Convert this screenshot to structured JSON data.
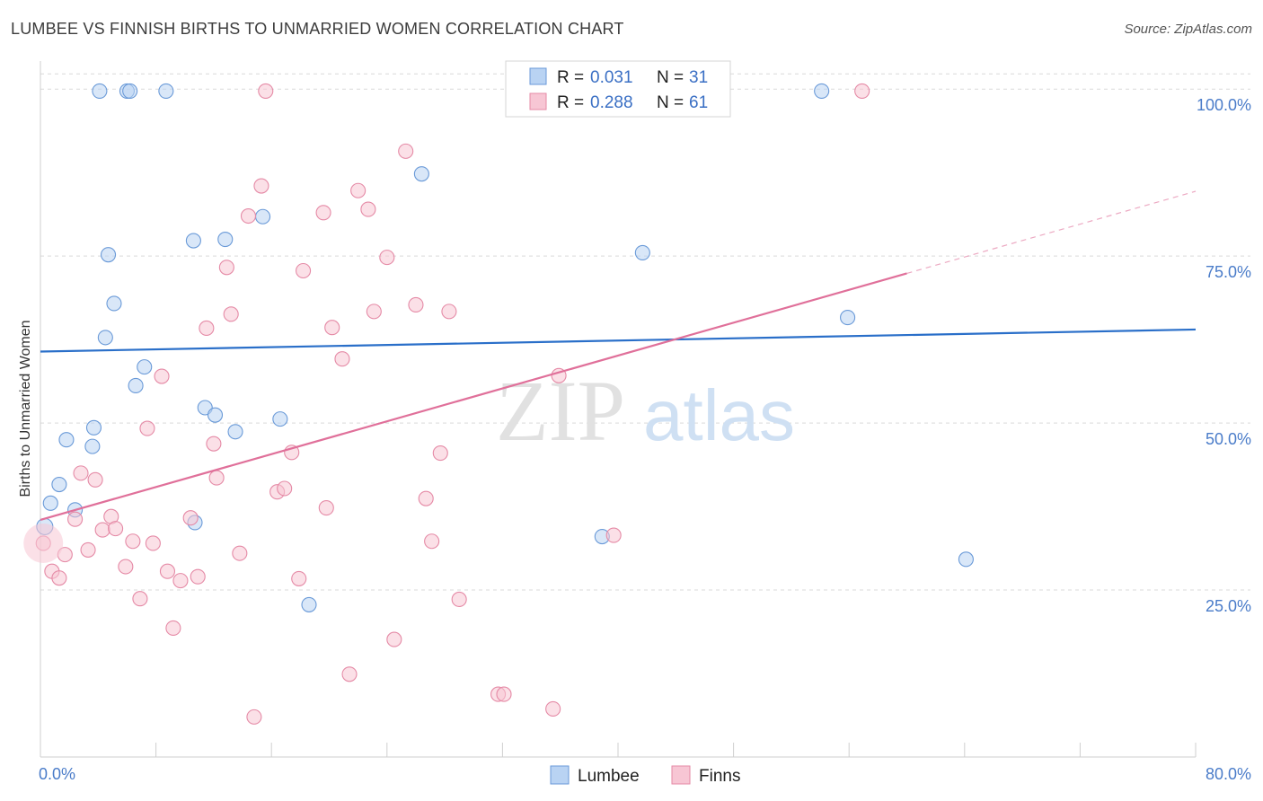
{
  "header": {
    "title": "LUMBEE VS FINNISH BIRTHS TO UNMARRIED WOMEN CORRELATION CHART",
    "source": "Source: ZipAtlas.com"
  },
  "watermark": {
    "zip": "ZIP",
    "atlas": "atlas"
  },
  "colors": {
    "lumbee_fill": "#b9d3f3",
    "lumbee_stroke": "#6a9ad8",
    "lumbee_line": "#2a6fc9",
    "finns_fill": "#f7c6d4",
    "finns_stroke": "#e58aa6",
    "finns_line": "#e0709a",
    "grid": "#d9d9d9",
    "tick_label": "#4a7cc9"
  },
  "chart_data": {
    "type": "scatter",
    "xlabel": "",
    "ylabel": "Births to Unmarried Women",
    "xlim": [
      0,
      80
    ],
    "ylim": [
      0,
      105
    ],
    "x_tick_labels": [
      {
        "value": 0,
        "label": "0.0%"
      },
      {
        "value": 80,
        "label": "80.0%"
      }
    ],
    "x_minor_ticks": [
      8,
      16,
      24,
      32,
      40,
      48,
      56,
      64,
      72,
      80
    ],
    "y_ticks": [
      {
        "value": 25,
        "label": "25.0%"
      },
      {
        "value": 50,
        "label": "50.0%"
      },
      {
        "value": 75,
        "label": "75.0%"
      },
      {
        "value": 100,
        "label": "100.0%"
      }
    ],
    "grid": true,
    "legend": {
      "placement": "top-center",
      "entries": [
        {
          "series": "Lumbee",
          "r_label": "R =",
          "r_value": "0.031",
          "n_label": "N =",
          "n_value": "31"
        },
        {
          "series": "Finns",
          "r_label": "R =",
          "r_value": "0.288",
          "n_label": "N =",
          "n_value": "61"
        }
      ]
    },
    "series": [
      {
        "name": "Lumbee",
        "trend": {
          "x": [
            0,
            80
          ],
          "y": [
            60.7,
            64.0
          ],
          "dashed_extension_to": null
        },
        "points": [
          [
            0.3,
            34.5
          ],
          [
            0.7,
            38.0
          ],
          [
            1.3,
            40.8
          ],
          [
            1.8,
            47.5
          ],
          [
            2.4,
            37.0
          ],
          [
            3.6,
            46.5
          ],
          [
            3.7,
            49.3
          ],
          [
            4.1,
            99.7
          ],
          [
            4.5,
            62.8
          ],
          [
            4.7,
            75.2
          ],
          [
            5.1,
            67.9
          ],
          [
            6.0,
            99.7
          ],
          [
            6.2,
            99.7
          ],
          [
            6.6,
            55.6
          ],
          [
            7.2,
            58.4
          ],
          [
            8.7,
            99.7
          ],
          [
            10.6,
            77.3
          ],
          [
            10.7,
            35.1
          ],
          [
            11.4,
            52.3
          ],
          [
            12.1,
            51.2
          ],
          [
            12.8,
            77.5
          ],
          [
            13.5,
            48.7
          ],
          [
            15.4,
            80.9
          ],
          [
            16.6,
            50.6
          ],
          [
            18.6,
            22.8
          ],
          [
            26.4,
            87.3
          ],
          [
            38.9,
            33.0
          ],
          [
            41.7,
            75.5
          ],
          [
            54.1,
            99.7
          ],
          [
            55.9,
            65.8
          ],
          [
            64.1,
            29.6
          ]
        ],
        "sizes": {
          "0.3,34.5": "large"
        }
      },
      {
        "name": "Finns",
        "trend": {
          "x": [
            0,
            60
          ],
          "y": [
            35.5,
            72.4
          ],
          "dashed_extension_to": [
            80,
            84.7
          ]
        },
        "points": [
          [
            0.2,
            32.0
          ],
          [
            0.8,
            27.8
          ],
          [
            1.3,
            26.8
          ],
          [
            1.7,
            30.3
          ],
          [
            2.4,
            35.6
          ],
          [
            2.8,
            42.5
          ],
          [
            3.3,
            31.0
          ],
          [
            3.8,
            41.5
          ],
          [
            4.3,
            34.0
          ],
          [
            4.9,
            36.0
          ],
          [
            5.2,
            34.2
          ],
          [
            5.9,
            28.5
          ],
          [
            6.4,
            32.3
          ],
          [
            6.9,
            23.7
          ],
          [
            7.4,
            49.2
          ],
          [
            7.8,
            32.0
          ],
          [
            8.4,
            57.0
          ],
          [
            8.8,
            27.8
          ],
          [
            9.2,
            19.3
          ],
          [
            9.7,
            26.4
          ],
          [
            10.4,
            35.8
          ],
          [
            10.9,
            27.0
          ],
          [
            11.5,
            64.2
          ],
          [
            12.0,
            46.9
          ],
          [
            12.2,
            41.8
          ],
          [
            12.9,
            73.3
          ],
          [
            13.2,
            66.3
          ],
          [
            13.8,
            30.5
          ],
          [
            14.4,
            81.0
          ],
          [
            14.8,
            6.0
          ],
          [
            15.3,
            85.5
          ],
          [
            15.6,
            99.7
          ],
          [
            16.4,
            39.7
          ],
          [
            16.9,
            40.2
          ],
          [
            17.4,
            45.6
          ],
          [
            17.9,
            26.7
          ],
          [
            18.2,
            72.8
          ],
          [
            19.6,
            81.5
          ],
          [
            19.8,
            37.3
          ],
          [
            20.2,
            64.3
          ],
          [
            20.9,
            59.6
          ],
          [
            21.4,
            12.4
          ],
          [
            22.0,
            84.8
          ],
          [
            22.7,
            82.0
          ],
          [
            23.1,
            66.7
          ],
          [
            24.0,
            74.8
          ],
          [
            24.5,
            17.6
          ],
          [
            25.3,
            90.7
          ],
          [
            26.0,
            67.7
          ],
          [
            26.7,
            38.7
          ],
          [
            27.1,
            32.3
          ],
          [
            27.7,
            45.5
          ],
          [
            28.3,
            66.7
          ],
          [
            29.0,
            23.6
          ],
          [
            31.7,
            9.4
          ],
          [
            32.1,
            9.4
          ],
          [
            35.5,
            7.2
          ],
          [
            35.9,
            57.1
          ],
          [
            37.1,
            99.7
          ],
          [
            39.7,
            33.2
          ],
          [
            56.9,
            99.7
          ]
        ]
      }
    ]
  },
  "bottom_legend": [
    {
      "label": "Lumbee"
    },
    {
      "label": "Finns"
    }
  ]
}
